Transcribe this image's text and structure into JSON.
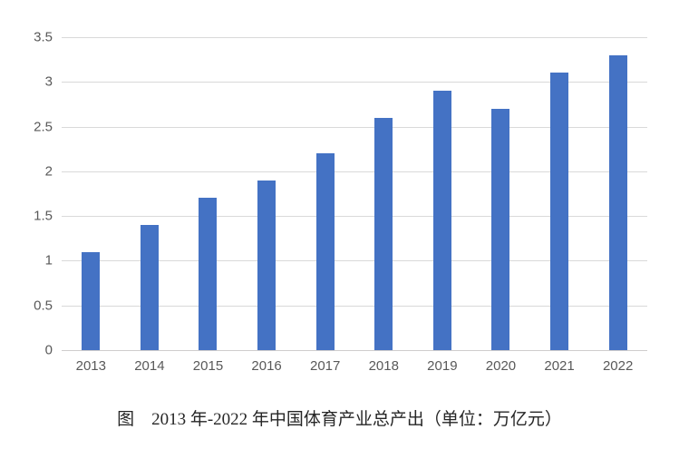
{
  "caption": "图　2013 年-2022 年中国体育产业总产出（单位：万亿元）",
  "colors": {
    "bar": "#4472c4",
    "gridline": "#d9d9d9",
    "axis_line": "#cfcdcd",
    "axis_label": "#595959",
    "caption_text": "#262626",
    "background": "#ffffff"
  },
  "chart_data": {
    "type": "bar",
    "title": "",
    "xlabel": "",
    "ylabel": "",
    "categories": [
      "2013",
      "2014",
      "2015",
      "2016",
      "2017",
      "2018",
      "2019",
      "2020",
      "2021",
      "2022"
    ],
    "values": [
      1.1,
      1.4,
      1.7,
      1.9,
      2.2,
      2.6,
      2.9,
      2.7,
      3.1,
      3.3
    ],
    "ylim": [
      0,
      3.5
    ],
    "yticks": [
      0,
      0.5,
      1,
      1.5,
      2,
      2.5,
      3,
      3.5
    ],
    "ytick_labels": [
      "0",
      "0.5",
      "1",
      "1.5",
      "2",
      "2.5",
      "3",
      "3.5"
    ],
    "grid": true,
    "legend": "none"
  }
}
